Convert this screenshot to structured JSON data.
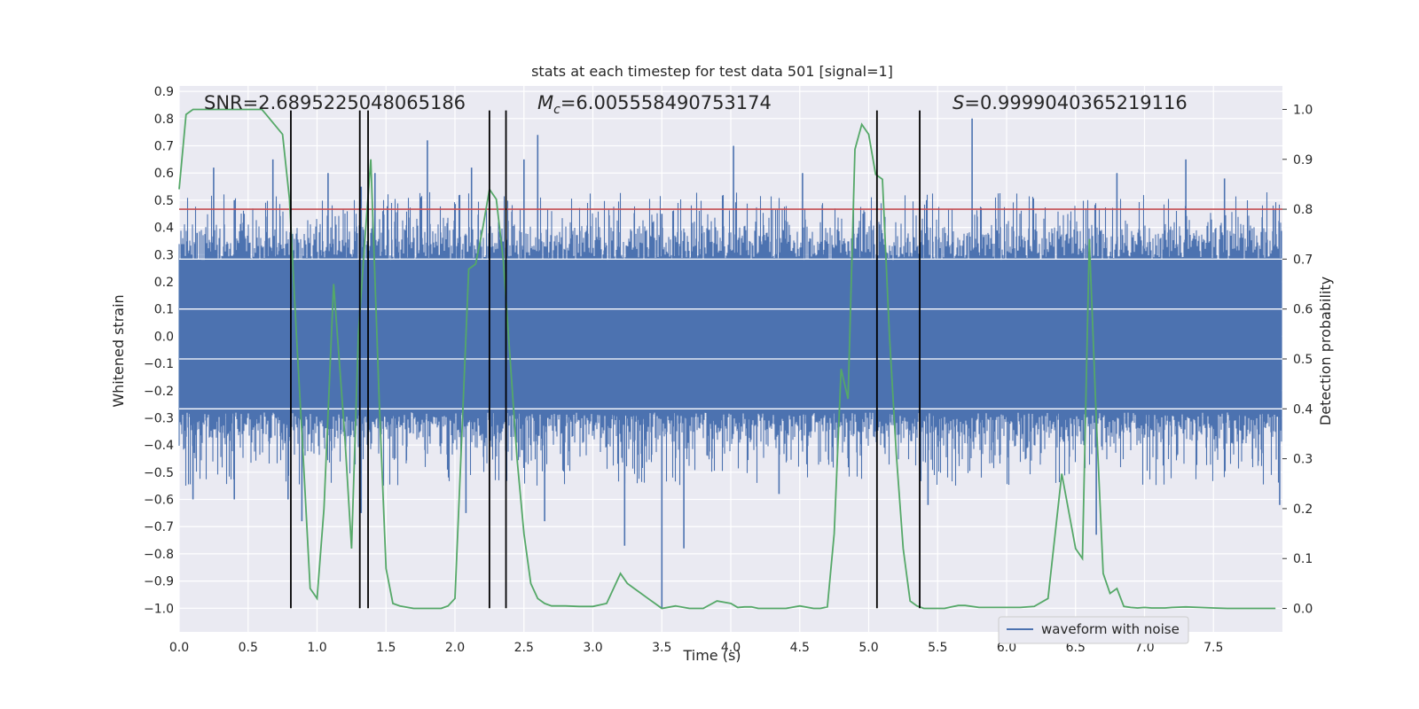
{
  "chart_data": {
    "type": "line",
    "title": "stats at each timestep for test data 501 [signal=1]",
    "xlabel": "Time (s)",
    "ylabel_left": "Whitened strain",
    "ylabel_right": "Detection probability",
    "xlim": [
      0,
      8
    ],
    "ylim_left": [
      -1.087,
      0.92
    ],
    "ylim_right": [
      -0.047,
      1.047
    ],
    "x_ticks": [
      "0.0",
      "0.5",
      "1.0",
      "1.5",
      "2.0",
      "2.5",
      "3.0",
      "3.5",
      "4.0",
      "4.5",
      "5.0",
      "5.5",
      "6.0",
      "6.5",
      "7.0",
      "7.5"
    ],
    "y_ticks_left": [
      "0.9",
      "0.8",
      "0.7",
      "0.6",
      "0.5",
      "0.4",
      "0.3",
      "0.2",
      "0.1",
      "0.0",
      "−0.1",
      "−0.2",
      "−0.3",
      "−0.4",
      "−0.5",
      "−0.6",
      "−0.7",
      "−0.8",
      "−0.9",
      "−1.0"
    ],
    "y_ticks_right": [
      "1.0",
      "0.9",
      "0.8",
      "0.7",
      "0.6",
      "0.5",
      "0.4",
      "0.3",
      "0.2",
      "0.1",
      "0.0"
    ],
    "grid": true,
    "legend": {
      "placement": "lower-right",
      "entries": [
        "waveform with noise"
      ]
    },
    "annotations": {
      "snr": "SNR=2.6895225048065186",
      "mc_symbol": "M",
      "mc_sub": "c",
      "mc_value": "=6.005558490753174",
      "s_symbol": "S",
      "s_value": "=0.9999040365219116"
    },
    "threshold_y_right": 0.8,
    "vertical_lines_x": [
      0.81,
      1.31,
      1.37,
      2.25,
      2.37,
      5.06,
      5.37
    ],
    "vertical_lines_yrange": [
      -1.0,
      0.83
    ],
    "noise_band": {
      "core_half_width": 0.28,
      "typical_peak": 0.45,
      "max_peak": 0.8,
      "min_peak": -1.0
    },
    "noise_spikes": [
      {
        "x": 0.13,
        "y": 0.38
      },
      {
        "x": 0.25,
        "y": 0.62
      },
      {
        "x": 0.4,
        "y": 0.5
      },
      {
        "x": 0.68,
        "y": 0.65
      },
      {
        "x": 1.08,
        "y": 0.6
      },
      {
        "x": 1.32,
        "y": 0.55
      },
      {
        "x": 1.42,
        "y": 0.6
      },
      {
        "x": 1.8,
        "y": 0.72
      },
      {
        "x": 2.12,
        "y": 0.62
      },
      {
        "x": 2.5,
        "y": 0.65
      },
      {
        "x": 2.6,
        "y": 0.74
      },
      {
        "x": 3.5,
        "y": 0.45
      },
      {
        "x": 4.02,
        "y": 0.7
      },
      {
        "x": 4.52,
        "y": 0.6
      },
      {
        "x": 5.42,
        "y": 0.5
      },
      {
        "x": 5.75,
        "y": 0.8
      },
      {
        "x": 6.8,
        "y": 0.6
      },
      {
        "x": 7.3,
        "y": 0.65
      },
      {
        "x": 7.58,
        "y": 0.58
      },
      {
        "x": 0.1,
        "y": -0.6
      },
      {
        "x": 0.4,
        "y": -0.6
      },
      {
        "x": 0.79,
        "y": -0.6
      },
      {
        "x": 0.89,
        "y": -0.68
      },
      {
        "x": 1.32,
        "y": -0.65
      },
      {
        "x": 2.08,
        "y": -0.65
      },
      {
        "x": 2.65,
        "y": -0.68
      },
      {
        "x": 3.23,
        "y": -0.77
      },
      {
        "x": 3.5,
        "y": -1.0
      },
      {
        "x": 3.66,
        "y": -0.78
      },
      {
        "x": 4.35,
        "y": -0.58
      },
      {
        "x": 5.43,
        "y": -0.62
      },
      {
        "x": 6.65,
        "y": -0.73
      },
      {
        "x": 7.98,
        "y": -0.62
      }
    ],
    "series": [
      {
        "name": "waveform with noise",
        "axis": "left",
        "color": "#4c72b0",
        "description_values": "dense whitened strain noise"
      },
      {
        "axis": "right",
        "color": "#55a868",
        "x": [
          0.0,
          0.05,
          0.1,
          0.2,
          0.3,
          0.4,
          0.5,
          0.6,
          0.63,
          0.75,
          0.8,
          0.85,
          0.9,
          0.95,
          1.0,
          1.05,
          1.12,
          1.2,
          1.25,
          1.3,
          1.35,
          1.39,
          1.45,
          1.5,
          1.55,
          1.6,
          1.7,
          1.8,
          1.9,
          1.95,
          2.0,
          2.05,
          2.1,
          2.15,
          2.2,
          2.25,
          2.3,
          2.35,
          2.4,
          2.45,
          2.5,
          2.55,
          2.6,
          2.65,
          2.7,
          2.75,
          2.8,
          2.9,
          3.0,
          3.1,
          3.15,
          3.2,
          3.25,
          3.3,
          3.35,
          3.4,
          3.45,
          3.5,
          3.6,
          3.7,
          3.8,
          3.9,
          4.0,
          4.05,
          4.1,
          4.15,
          4.2,
          4.3,
          4.4,
          4.5,
          4.6,
          4.65,
          4.7,
          4.75,
          4.8,
          4.85,
          4.9,
          4.95,
          5.0,
          5.05,
          5.1,
          5.15,
          5.2,
          5.25,
          5.3,
          5.35,
          5.4,
          5.45,
          5.5,
          5.55,
          5.6,
          5.65,
          5.7,
          5.8,
          5.9,
          6.0,
          6.1,
          6.2,
          6.3,
          6.4,
          6.5,
          6.55,
          6.6,
          6.65,
          6.7,
          6.75,
          6.8,
          6.85,
          6.9,
          6.95,
          7.0,
          7.05,
          7.1,
          7.15,
          7.2,
          7.3,
          7.4,
          7.5,
          7.6,
          7.7,
          7.8,
          7.9,
          7.95
        ],
        "y": [
          0.84,
          0.99,
          1.0,
          1.0,
          1.0,
          1.0,
          1.0,
          1.0,
          0.99,
          0.95,
          0.82,
          0.55,
          0.3,
          0.04,
          0.02,
          0.2,
          0.65,
          0.35,
          0.12,
          0.55,
          0.75,
          0.9,
          0.42,
          0.08,
          0.01,
          0.005,
          0.0,
          0.0,
          0.0,
          0.005,
          0.02,
          0.35,
          0.68,
          0.69,
          0.76,
          0.84,
          0.82,
          0.7,
          0.5,
          0.3,
          0.15,
          0.05,
          0.02,
          0.01,
          0.005,
          0.005,
          0.005,
          0.004,
          0.004,
          0.01,
          0.04,
          0.07,
          0.05,
          0.04,
          0.03,
          0.02,
          0.01,
          0.0,
          0.005,
          0.0,
          0.0,
          0.015,
          0.01,
          0.002,
          0.003,
          0.003,
          0.0,
          0.0,
          0.0,
          0.005,
          0.0,
          0.0,
          0.003,
          0.15,
          0.48,
          0.42,
          0.92,
          0.97,
          0.95,
          0.87,
          0.86,
          0.55,
          0.31,
          0.12,
          0.015,
          0.005,
          0.0,
          0.0,
          0.0,
          0.0,
          0.003,
          0.006,
          0.006,
          0.002,
          0.002,
          0.002,
          0.002,
          0.004,
          0.02,
          0.27,
          0.12,
          0.1,
          0.74,
          0.38,
          0.07,
          0.03,
          0.04,
          0.004,
          0.002,
          0.001,
          0.002,
          0.001,
          0.001,
          0.001,
          0.002,
          0.003,
          0.002,
          0.001,
          0.0,
          0.0,
          0.0,
          0.0,
          0.0
        ]
      }
    ]
  },
  "colors": {
    "axes_bg": "#eaeaf2",
    "grid": "#ffffff",
    "strain": "#4c72b0",
    "probability": "#55a868",
    "threshold": "#c44e52",
    "marker_lines": "#000000"
  }
}
